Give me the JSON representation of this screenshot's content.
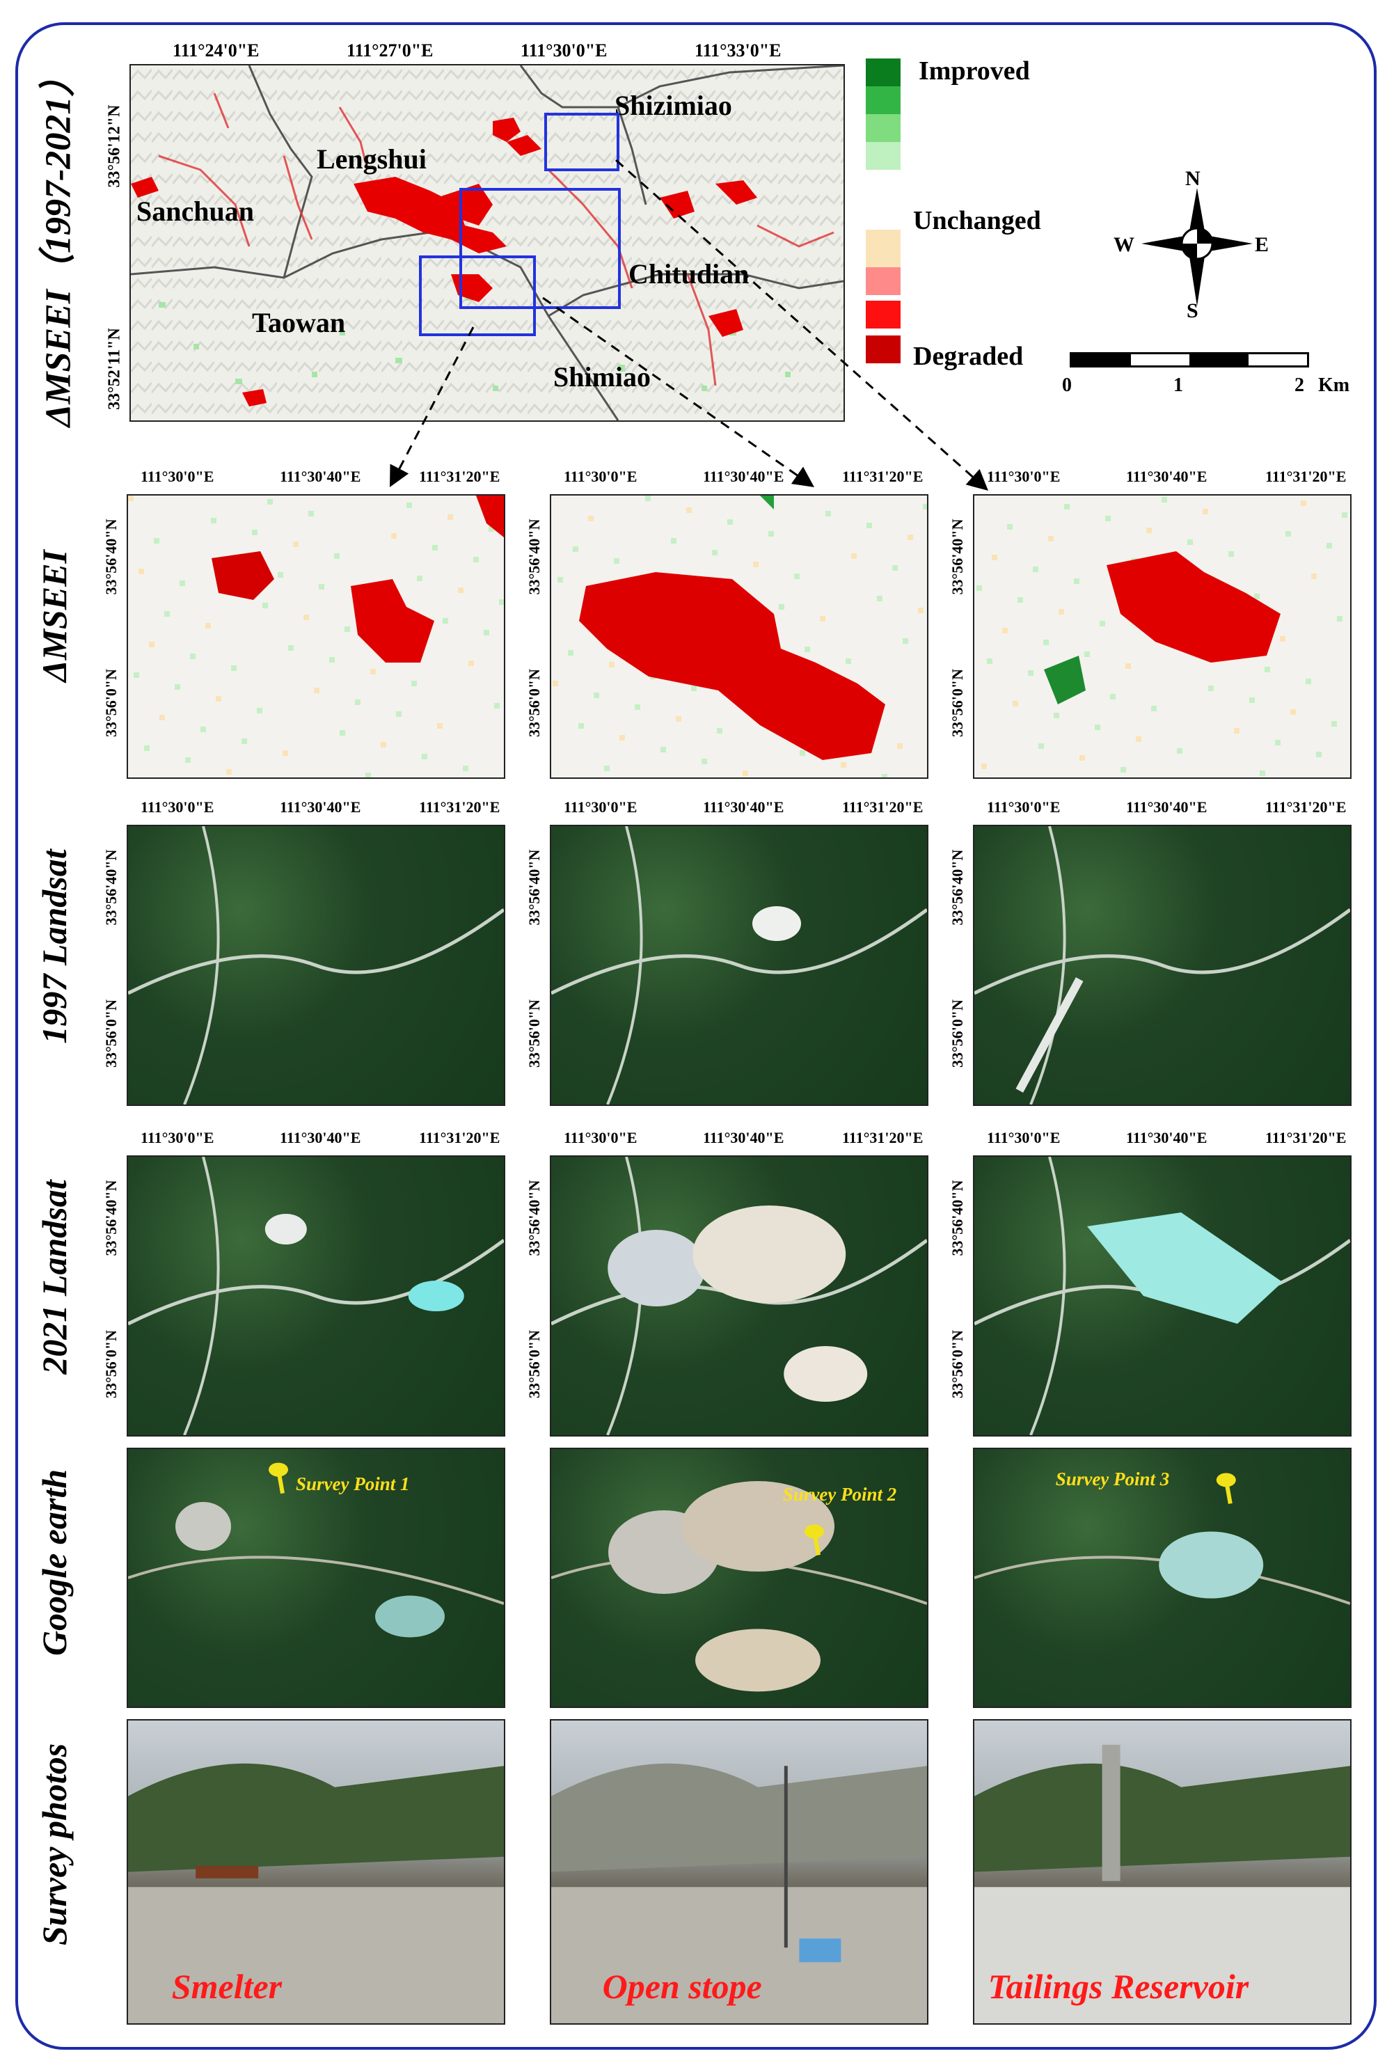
{
  "top_map": {
    "row_label": "ΔMSEEI（1997-2021）",
    "lon_ticks": [
      "111°24'0\"E",
      "111°27'0\"E",
      "111°30'0\"E",
      "111°33'0\"E"
    ],
    "lat_ticks": [
      "33°56'12\"N",
      "33°52'11\"N"
    ],
    "place_names": [
      "Shizimiao",
      "Lengshui",
      "Sanchuan",
      "Chitudian",
      "Taowan",
      "Shimiao"
    ]
  },
  "legend": {
    "items": [
      {
        "label": "Improved",
        "colors": [
          "#0a7d1e",
          "#33b545",
          "#7fdc7f",
          "#bff0bf"
        ]
      },
      {
        "label": "Unchanged",
        "colors": [
          "#fbe3b8"
        ]
      },
      {
        "label": "Degraded",
        "colors": [
          "#ff8a8a",
          "#ff1010",
          "#c80000"
        ]
      }
    ]
  },
  "compass": {
    "n": "N",
    "s": "S",
    "e": "E",
    "w": "W"
  },
  "scale_bar": {
    "ticks": [
      "0",
      "1",
      "2"
    ],
    "unit": "Km"
  },
  "panel_ticks": {
    "lon": [
      "111°30'0\"E",
      "111°30'40\"E",
      "111°31'20\"E"
    ],
    "lat": [
      "33°56'40\"N",
      "33°56'0\"N"
    ]
  },
  "rows": [
    {
      "label": "ΔMSEEI"
    },
    {
      "label": "1997 Landsat"
    },
    {
      "label": "2021 Landsat"
    },
    {
      "label": "Google earth"
    },
    {
      "label": "Survey photos"
    }
  ],
  "survey_points": [
    "Survey Point 1",
    "Survey Point 2",
    "Survey Point 3"
  ],
  "photo_captions": [
    "Smelter",
    "Open stope",
    "Tailings Reservoir"
  ]
}
